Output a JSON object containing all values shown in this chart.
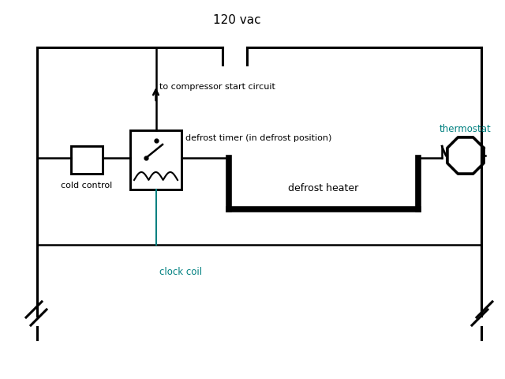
{
  "bg_color": "#ffffff",
  "line_color": "#000000",
  "teal_color": "#008080",
  "title": "120 vac",
  "labels": {
    "compressor": "to compressor start circuit",
    "defrost_timer": "defrost timer (in defrost position)",
    "cold_control": "cold control",
    "defrost_heater": "defrost heater",
    "clock_coil": "clock coil",
    "thermostat": "thermostat"
  },
  "lw_main": 1.8,
  "lw_thick": 5.5,
  "lw_border": 2.2
}
